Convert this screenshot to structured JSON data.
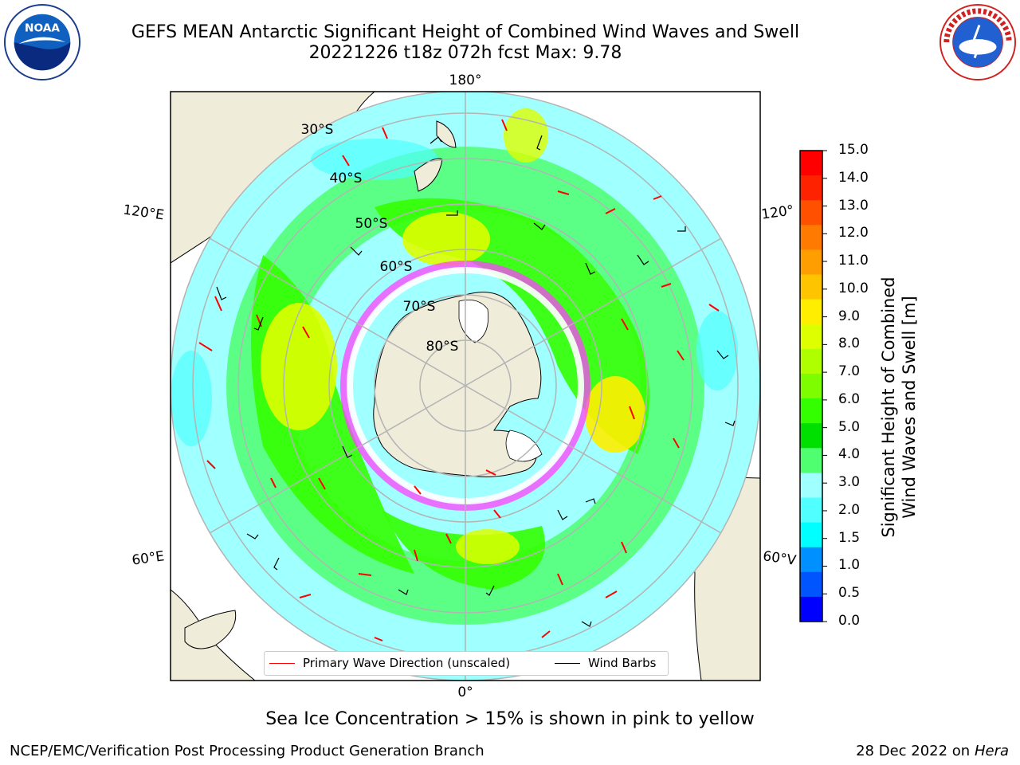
{
  "header": {
    "title_line1": "GEFS MEAN Antarctic Significant Height of Combined Wind Waves and Swell",
    "title_line2": "20221226 t18z 072h fcst   Max: 9.78"
  },
  "logos": {
    "left": "NOAA",
    "right": "NATIONAL WEATHER SERVICE"
  },
  "map": {
    "longitude_labels": {
      "top": "180°",
      "bottom": "0°",
      "upper_left": "120°E",
      "upper_right": "120°",
      "lower_left": "60°E",
      "lower_right": "60°V"
    },
    "latitude_labels": [
      "30°S",
      "40°S",
      "50°S",
      "60°S",
      "70°S",
      "80°S"
    ]
  },
  "colorbar": {
    "label_line1": "Significant Height of Combined",
    "label_line2": "Wind Waves and Swell [m]",
    "ticks": [
      "15.0",
      "14.0",
      "13.0",
      "12.0",
      "11.0",
      "10.0",
      "9.0",
      "8.0",
      "7.0",
      "6.0",
      "5.0",
      "4.0",
      "3.0",
      "2.0",
      "1.5",
      "1.0",
      "0.5",
      "0.0"
    ],
    "colors": [
      "#ff0000",
      "#ff2200",
      "#ff5000",
      "#ff7a00",
      "#ff9e00",
      "#ffc400",
      "#ffee00",
      "#ddff00",
      "#b0ff00",
      "#7dfd00",
      "#33ff00",
      "#00e000",
      "#50ff70",
      "#a0ffff",
      "#50ffff",
      "#00ffff",
      "#0090ff",
      "#0055ff",
      "#0000ff"
    ]
  },
  "legend": {
    "wave_label": "Primary Wave Direction (unscaled)",
    "wind_label": "Wind Barbs",
    "wave_color": "#ff0000",
    "wind_color": "#000000"
  },
  "notes": {
    "sea_ice": "Sea Ice Concentration > 15% is shown in pink to yellow"
  },
  "footer": {
    "left": "NCEP/EMC/Verification Post Processing Product Generation Branch",
    "right_date": "28 Dec 2022 on",
    "right_machine": "Hera"
  }
}
